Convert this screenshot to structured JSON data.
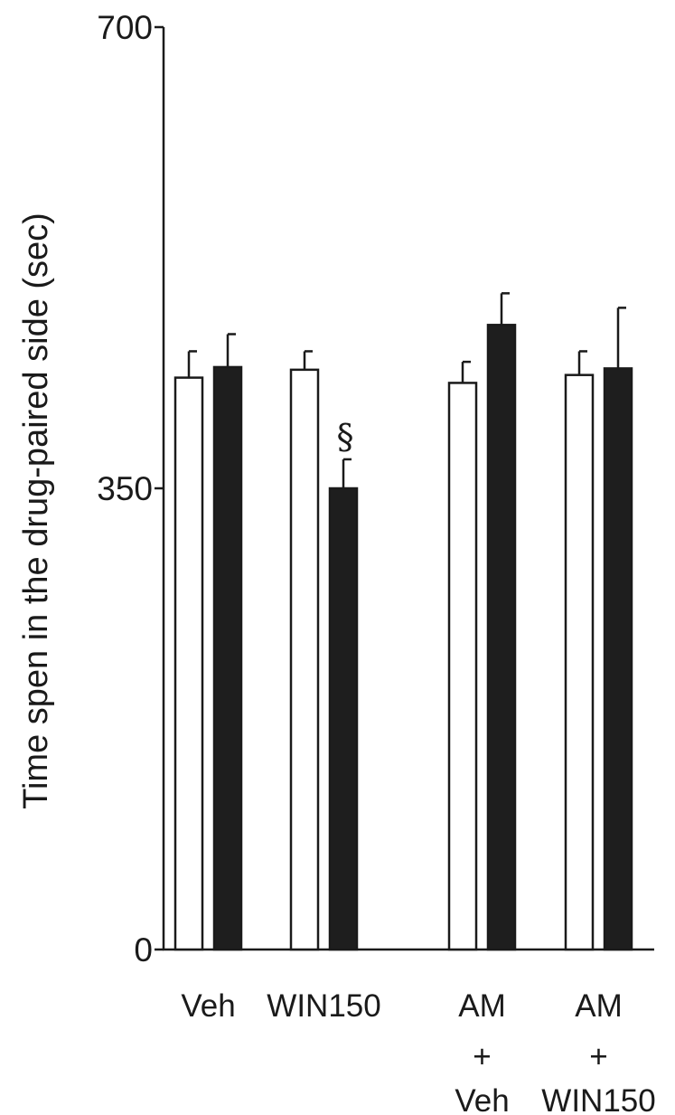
{
  "chart_data": {
    "type": "bar",
    "title": "",
    "xlabel": "",
    "ylabel": "Time spen in the drug-paired side (sec)",
    "ylim": [
      0,
      700
    ],
    "yticks": [
      0,
      350,
      700
    ],
    "grid": false,
    "legend": "none",
    "categories": [
      [
        "Veh"
      ],
      [
        "WIN150"
      ],
      [
        "AM",
        "+",
        "Veh"
      ],
      [
        "AM",
        "+",
        "WIN150"
      ]
    ],
    "series": [
      {
        "fill": "#ffffff",
        "values": [
          434,
          440,
          430,
          436
        ],
        "errors": [
          20,
          14,
          16,
          18
        ]
      },
      {
        "fill": "#1e1e1e",
        "values": [
          442,
          350,
          474,
          441
        ],
        "errors": [
          25,
          22,
          24,
          46
        ]
      }
    ],
    "annotations": [
      {
        "category_index": 1,
        "series_index": 1,
        "text": "§"
      }
    ],
    "colors": {
      "axis": "#1a1a1a",
      "bar_outline": "#1a1a1a"
    }
  }
}
